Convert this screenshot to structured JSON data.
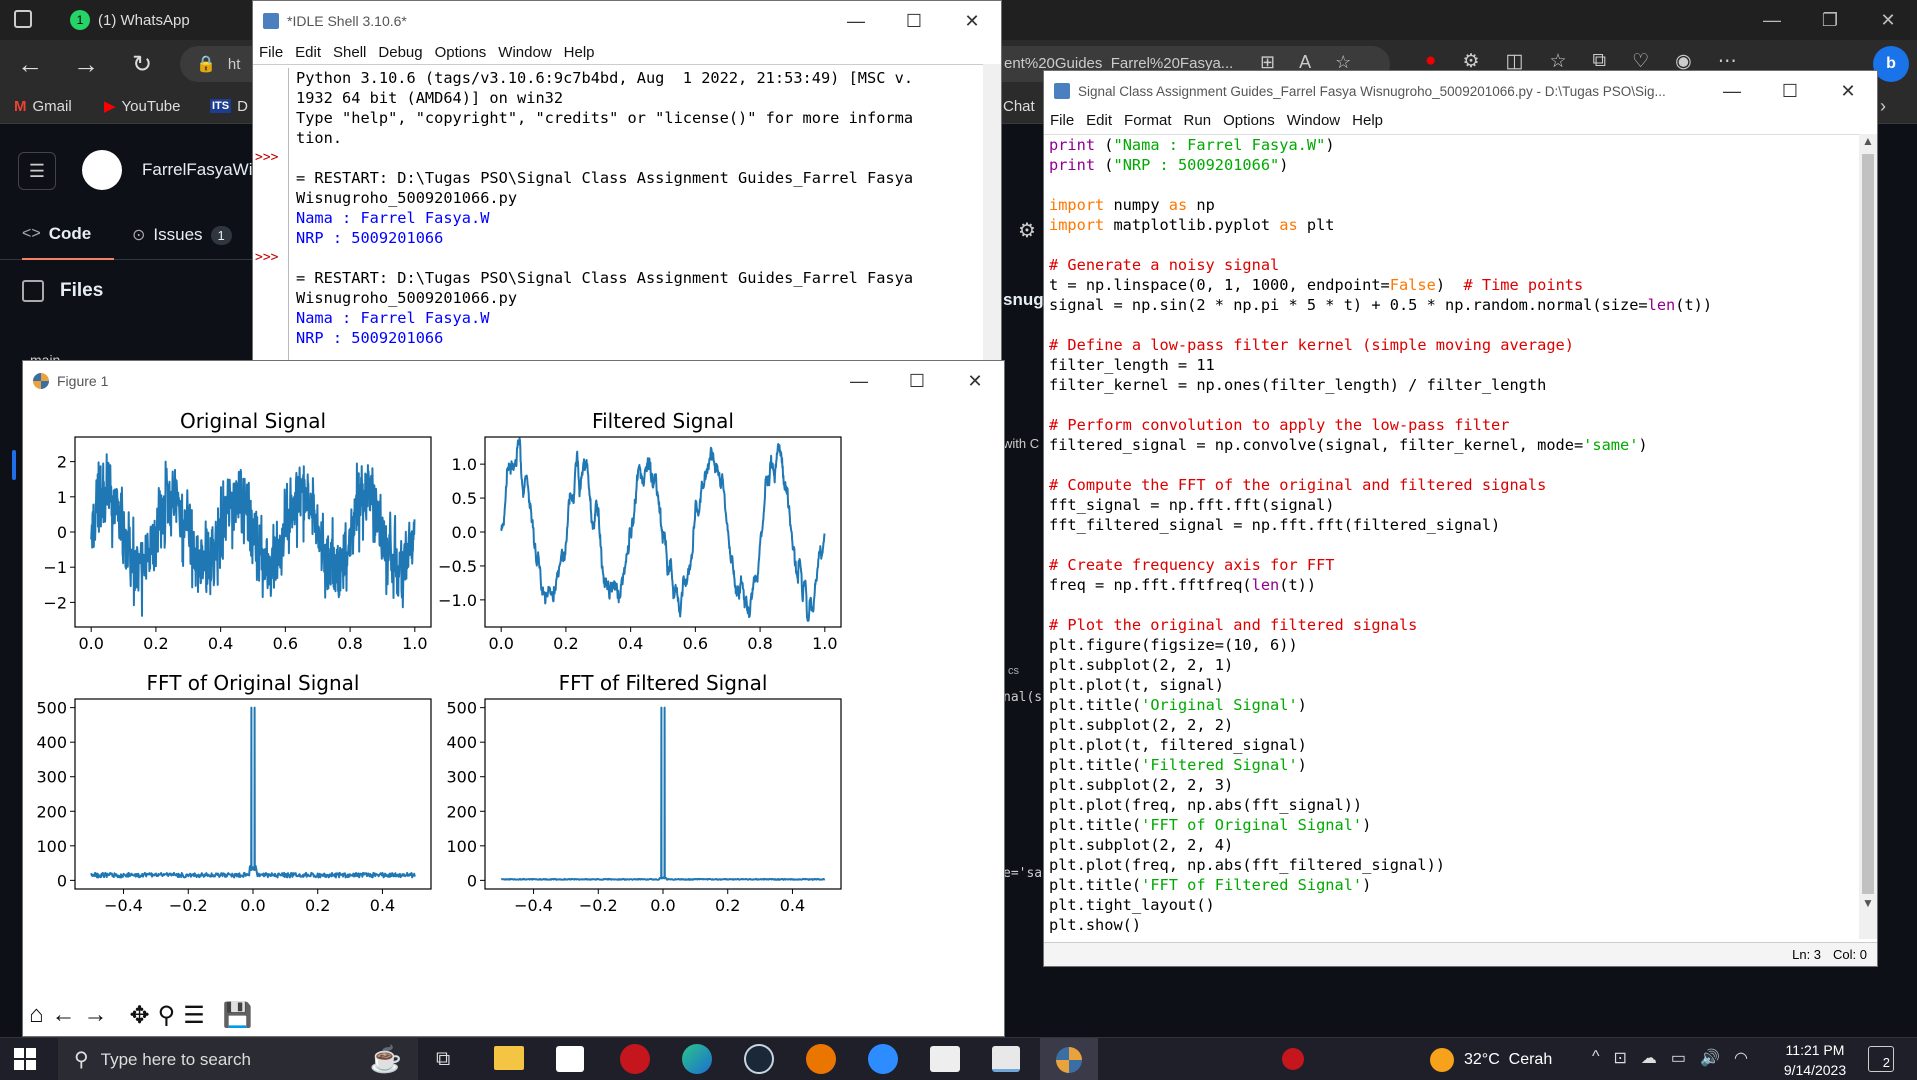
{
  "browser": {
    "tab_title": "(1) WhatsApp",
    "tab_badge": "1",
    "address_left": "ht",
    "address_right": "ent%20Guides_Farrel%20Fasya...",
    "bookmarks": [
      {
        "label": "Gmail",
        "icon": "gmail-icon"
      },
      {
        "label": "YouTube",
        "icon": "youtube-icon"
      },
      {
        "label": "D",
        "icon": "its-icon",
        "prefix": "ITS"
      }
    ],
    "behind_chat": "Chat"
  },
  "github": {
    "username": "FarrelFasyaWis",
    "nav": [
      {
        "label": "Code"
      },
      {
        "label": "Issues",
        "count": "1"
      }
    ],
    "files_label": "Files",
    "branch_label": "main",
    "side_snippets": [
      "snug",
      "with C",
      "cs",
      "nal(s",
      "e='sa"
    ]
  },
  "idle_shell": {
    "title": "*IDLE Shell 3.10.6*",
    "menu": [
      "File",
      "Edit",
      "Shell",
      "Debug",
      "Options",
      "Window",
      "Help"
    ],
    "lines": [
      {
        "prompt": "",
        "text": "Python 3.10.6 (tags/v3.10.6:9c7b4bd, Aug  1 2022, 21:53:49) [MSC v.",
        "kind": "plain"
      },
      {
        "prompt": "",
        "text": "1932 64 bit (AMD64)] on win32",
        "kind": "plain"
      },
      {
        "prompt": "",
        "text": "Type \"help\", \"copyright\", \"credits\" or \"license()\" for more informa",
        "kind": "plain"
      },
      {
        "prompt": "",
        "text": "tion.",
        "kind": "plain"
      },
      {
        "prompt": ">>>",
        "text": "",
        "kind": "plain"
      },
      {
        "prompt": "",
        "text": "= RESTART: D:\\Tugas PSO\\Signal Class Assignment Guides_Farrel Fasya",
        "kind": "plain"
      },
      {
        "prompt": "",
        "text": "Wisnugroho_5009201066.py",
        "kind": "plain"
      },
      {
        "prompt": "",
        "text": "Nama : Farrel Fasya.W",
        "kind": "out"
      },
      {
        "prompt": "",
        "text": "NRP : 5009201066",
        "kind": "out"
      },
      {
        "prompt": ">>>",
        "text": "",
        "kind": "plain"
      },
      {
        "prompt": "",
        "text": "= RESTART: D:\\Tugas PSO\\Signal Class Assignment Guides_Farrel Fasya",
        "kind": "plain"
      },
      {
        "prompt": "",
        "text": "Wisnugroho_5009201066.py",
        "kind": "plain"
      },
      {
        "prompt": "",
        "text": "Nama : Farrel Fasya.W",
        "kind": "out"
      },
      {
        "prompt": "",
        "text": "NRP : 5009201066",
        "kind": "out"
      }
    ]
  },
  "editor": {
    "title": "Signal Class Assignment Guides_Farrel Fasya Wisnugroho_5009201066.py - D:\\Tugas PSO\\Sig...",
    "menu": [
      "File",
      "Edit",
      "Format",
      "Run",
      "Options",
      "Window",
      "Help"
    ],
    "lines": [
      "print (\"Nama : Farrel Fasya.W\")",
      "print (\"NRP : 5009201066\")",
      "",
      "import numpy as np",
      "import matplotlib.pyplot as plt",
      "",
      "# Generate a noisy signal",
      "t = np.linspace(0, 1, 1000, endpoint=False)  # Time points",
      "signal = np.sin(2 * np.pi * 5 * t) + 0.5 * np.random.normal(size=len(t))",
      "",
      "# Define a low-pass filter kernel (simple moving average)",
      "filter_length = 11",
      "filter_kernel = np.ones(filter_length) / filter_length",
      "",
      "# Perform convolution to apply the low-pass filter",
      "filtered_signal = np.convolve(signal, filter_kernel, mode='same')",
      "",
      "# Compute the FFT of the original and filtered signals",
      "fft_signal = np.fft.fft(signal)",
      "fft_filtered_signal = np.fft.fft(filtered_signal)",
      "",
      "# Create frequency axis for FFT",
      "freq = np.fft.fftfreq(len(t))",
      "",
      "# Plot the original and filtered signals",
      "plt.figure(figsize=(10, 6))",
      "plt.subplot(2, 2, 1)",
      "plt.plot(t, signal)",
      "plt.title('Original Signal')",
      "plt.subplot(2, 2, 2)",
      "plt.plot(t, filtered_signal)",
      "plt.title('Filtered Signal')",
      "plt.subplot(2, 2, 3)",
      "plt.plot(freq, np.abs(fft_signal))",
      "plt.title('FFT of Original Signal')",
      "plt.subplot(2, 2, 4)",
      "plt.plot(freq, np.abs(fft_filtered_signal))",
      "plt.title('FFT of Filtered Signal')",
      "plt.tight_layout()",
      "plt.show()"
    ],
    "status": {
      "ln": "Ln: 3",
      "col": "Col: 0"
    }
  },
  "figure": {
    "title": "Figure 1",
    "toolbar_icons": [
      "home-icon",
      "back-icon",
      "forward-icon",
      "pan-icon",
      "zoom-icon",
      "configure-icon",
      "save-icon"
    ]
  },
  "chart_data": [
    {
      "type": "line",
      "title": "Original Signal",
      "xlim": [
        -0.05,
        1.05
      ],
      "ylim": [
        -2.7,
        2.7
      ],
      "xticks": [
        "0.0",
        "0.2",
        "0.4",
        "0.6",
        "0.8",
        "1.0"
      ],
      "yticks": [
        "−2",
        "−1",
        "0",
        "1",
        "2"
      ],
      "model": "sin(2*pi*5*t) + 0.5*N(0,1), t in [0,1), 1000 points",
      "color": "#1f77b4"
    },
    {
      "type": "line",
      "title": "Filtered Signal",
      "xlim": [
        -0.05,
        1.05
      ],
      "ylim": [
        -1.4,
        1.4
      ],
      "xticks": [
        "0.0",
        "0.2",
        "0.4",
        "0.6",
        "0.8",
        "1.0"
      ],
      "yticks": [
        "−1.0",
        "−0.5",
        "0.0",
        "0.5",
        "1.0"
      ],
      "model": "11-point moving average of Original Signal",
      "color": "#1f77b4"
    },
    {
      "type": "line",
      "title": "FFT of Original Signal",
      "xlim": [
        -0.55,
        0.55
      ],
      "ylim": [
        -25,
        525
      ],
      "xticks": [
        "−0.4",
        "−0.2",
        "0.0",
        "0.2",
        "0.4"
      ],
      "yticks": [
        "0",
        "100",
        "200",
        "300",
        "400",
        "500"
      ],
      "peaks": [
        {
          "x": -0.005,
          "y": 500
        },
        {
          "x": 0.005,
          "y": 500
        }
      ],
      "noise_floor": 15,
      "color": "#1f77b4"
    },
    {
      "type": "line",
      "title": "FFT of Filtered Signal",
      "xlim": [
        -0.55,
        0.55
      ],
      "ylim": [
        -25,
        525
      ],
      "xticks": [
        "−0.4",
        "−0.2",
        "0.0",
        "0.2",
        "0.4"
      ],
      "yticks": [
        "0",
        "100",
        "200",
        "300",
        "400",
        "500"
      ],
      "peaks": [
        {
          "x": -0.005,
          "y": 500
        },
        {
          "x": 0.005,
          "y": 500
        }
      ],
      "noise_floor": 3,
      "color": "#1f77b4"
    }
  ],
  "taskbar": {
    "search_placeholder": "Type here to search",
    "weather": "32°C  Cerah",
    "time": "11:21 PM",
    "date": "9/14/2023",
    "notif_count": "2"
  }
}
